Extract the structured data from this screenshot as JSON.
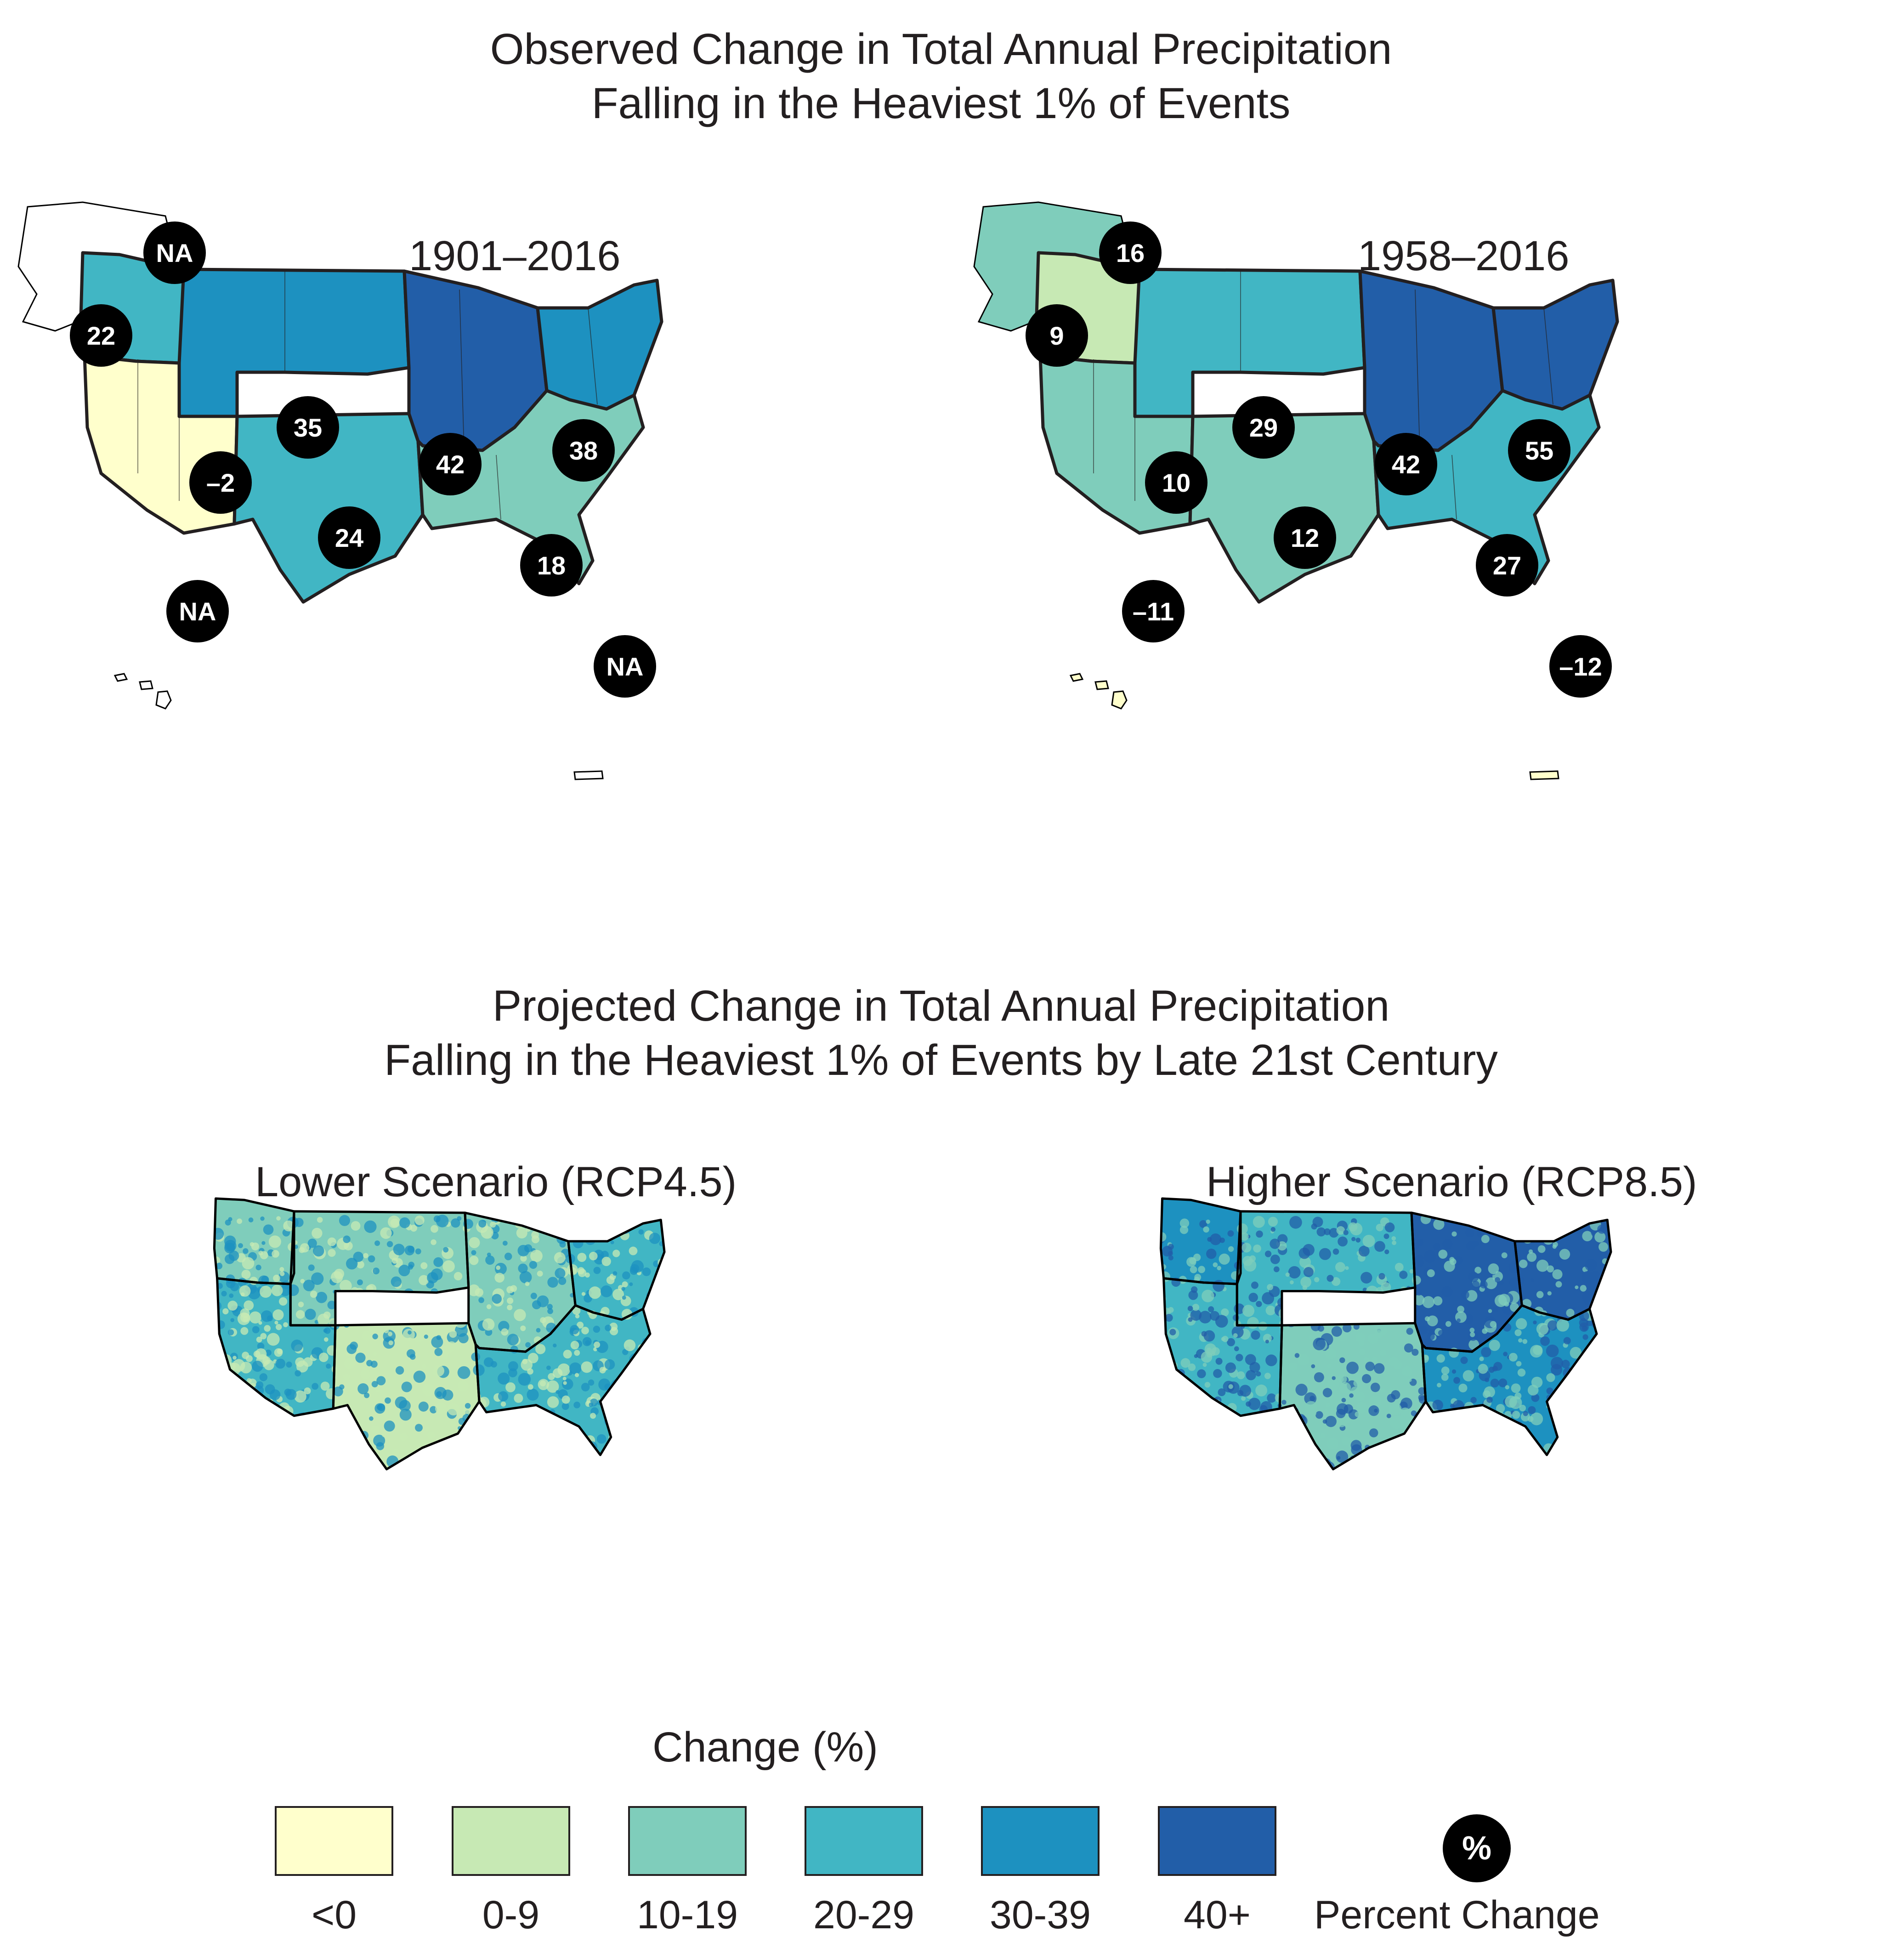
{
  "observed": {
    "title_line1": "Observed Change in Total Annual Precipitation",
    "title_line2": "Falling in the Heaviest 1% of Events",
    "maps": [
      {
        "period": "1901–2016",
        "regions": {
          "alaska": {
            "value": "NA",
            "color": "#ffffff"
          },
          "northwest": {
            "value": "22",
            "color": "#41b6c4"
          },
          "southwest": {
            "value": "–2",
            "color": "#ffffcc"
          },
          "great_plains_north": {
            "value": "35",
            "color": "#1d91c0"
          },
          "great_plains_south": {
            "value": "24",
            "color": "#41b6c4"
          },
          "midwest": {
            "value": "42",
            "color": "#225ea8"
          },
          "northeast": {
            "value": "38",
            "color": "#1d91c0"
          },
          "southeast": {
            "value": "18",
            "color": "#7fcdbb"
          },
          "hawaii": {
            "value": "NA",
            "color": "#ffffff"
          },
          "caribbean": {
            "value": "NA",
            "color": "#ffffff"
          }
        }
      },
      {
        "period": "1958–2016",
        "regions": {
          "alaska": {
            "value": "16",
            "color": "#7fcdbb"
          },
          "northwest": {
            "value": "9",
            "color": "#c7e9b4"
          },
          "southwest": {
            "value": "10",
            "color": "#7fcdbb"
          },
          "great_plains_north": {
            "value": "29",
            "color": "#41b6c4"
          },
          "great_plains_south": {
            "value": "12",
            "color": "#7fcdbb"
          },
          "midwest": {
            "value": "42",
            "color": "#225ea8"
          },
          "northeast": {
            "value": "55",
            "color": "#225ea8"
          },
          "southeast": {
            "value": "27",
            "color": "#41b6c4"
          },
          "hawaii": {
            "value": "–11",
            "color": "#ffffcc"
          },
          "caribbean": {
            "value": "–12",
            "color": "#ffffcc"
          }
        }
      }
    ]
  },
  "projected": {
    "title_line1": "Projected Change in Total Annual Precipitation",
    "title_line2": "Falling in the Heaviest 1% of Events by Late 21st Century",
    "maps": [
      {
        "scenario": "Lower Scenario (RCP4.5)",
        "regions": {
          "northwest": "#7fcdbb",
          "southwest": "#41b6c4",
          "great_plains_north": "#7fcdbb",
          "great_plains_south": "#c7e9b4",
          "midwest": "#7fcdbb",
          "northeast": "#41b6c4",
          "southeast": "#41b6c4"
        },
        "accent": "#1d91c0",
        "speckle": "#c7e9b4"
      },
      {
        "scenario": "Higher Scenario (RCP8.5)",
        "regions": {
          "northwest": "#1d91c0",
          "southwest": "#41b6c4",
          "great_plains_north": "#41b6c4",
          "great_plains_south": "#7fcdbb",
          "midwest": "#225ea8",
          "northeast": "#225ea8",
          "southeast": "#1d91c0"
        },
        "accent": "#225ea8",
        "speckle": "#7fcdbb"
      }
    ]
  },
  "legend": {
    "title": "Change (%)",
    "items": [
      {
        "label": "<0",
        "color": "#ffffcc"
      },
      {
        "label": "0-9",
        "color": "#c7e9b4"
      },
      {
        "label": "10-19",
        "color": "#7fcdbb"
      },
      {
        "label": "20-29",
        "color": "#41b6c4"
      },
      {
        "label": "30-39",
        "color": "#1d91c0"
      },
      {
        "label": "40+",
        "color": "#225ea8"
      }
    ],
    "bubble_symbol": "%",
    "bubble_label": "Percent Change"
  }
}
